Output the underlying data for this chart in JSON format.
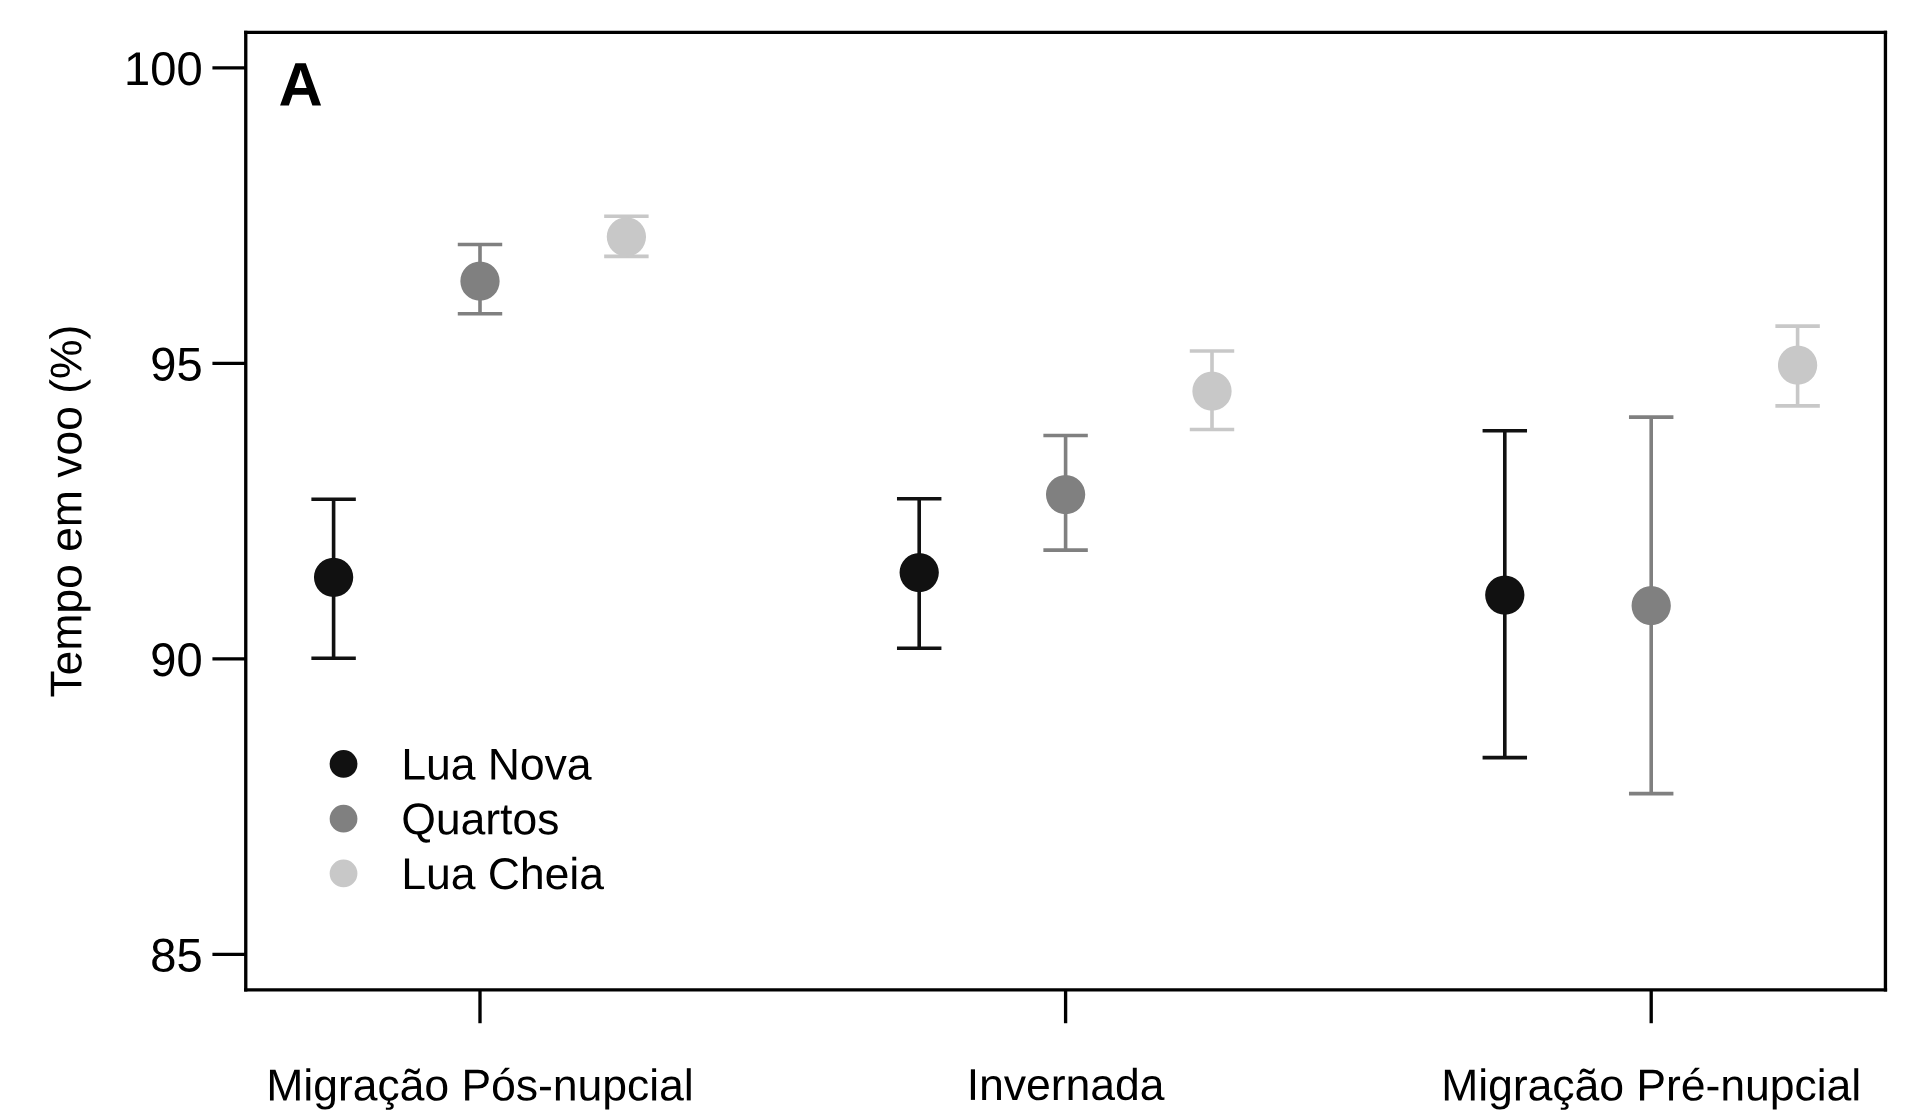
{
  "chart_data": {
    "type": "scatter",
    "ylabel": "Tempo em voo (%)",
    "annotations": [
      "A"
    ],
    "categories": [
      "Migração Pós-nupcial",
      "Invernada",
      "Migração Pré-nupcial"
    ],
    "series": [
      {
        "name": "Lua Nova",
        "color": "#111111",
        "values": [
          91.38,
          91.46,
          91.08
        ],
        "errors": [
          [
            90.01,
            92.7
          ],
          [
            90.18,
            92.71
          ],
          [
            88.33,
            93.86
          ]
        ]
      },
      {
        "name": "Quartos",
        "color": "#808080",
        "values": [
          96.39,
          92.78,
          90.9
        ],
        "errors": [
          [
            95.84,
            97.01
          ],
          [
            91.84,
            93.78
          ],
          [
            87.72,
            94.09
          ]
        ]
      },
      {
        "name": "Lua Cheia",
        "color": "#c8c8c8",
        "values": [
          97.14,
          94.53,
          94.97
        ],
        "errors": [
          [
            96.81,
            97.49
          ],
          [
            93.88,
            95.21
          ],
          [
            94.28,
            95.63
          ]
        ]
      }
    ],
    "ylim": [
      84.4,
      100.6
    ],
    "yticks": [
      85,
      90,
      95,
      100
    ],
    "grid": false,
    "legend": "bottom left",
    "marker": "circle"
  }
}
